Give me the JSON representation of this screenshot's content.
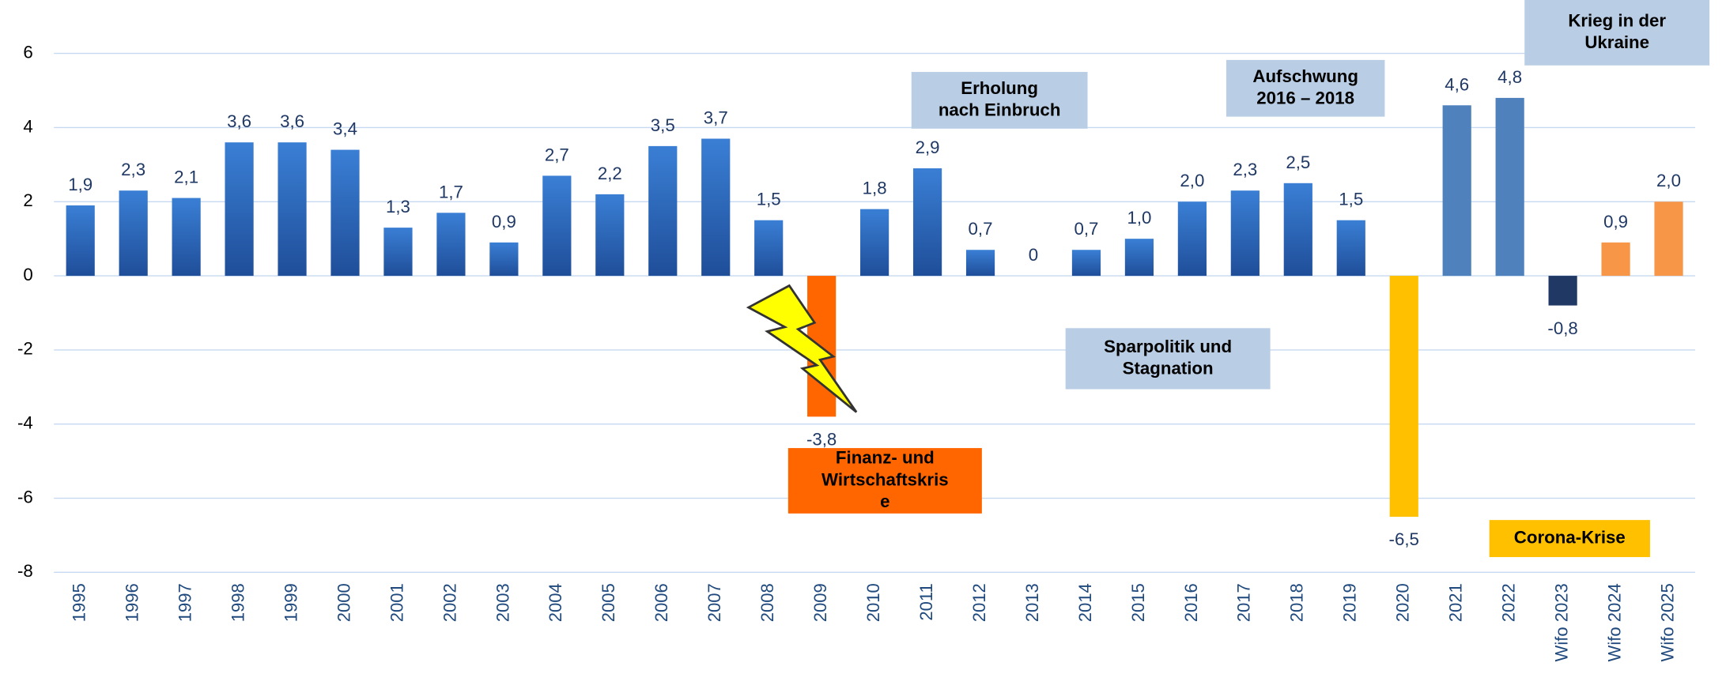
{
  "chart_data": {
    "type": "bar",
    "categories": [
      "1995",
      "1996",
      "1997",
      "1998",
      "1999",
      "2000",
      "2001",
      "2002",
      "2003",
      "2004",
      "2005",
      "2006",
      "2007",
      "2008",
      "2009",
      "2010",
      "2011",
      "2012",
      "2013",
      "2014",
      "2015",
      "2016",
      "2017",
      "2018",
      "2019",
      "2020",
      "2021",
      "2022",
      "Wifo 2023",
      "Wifo 2024",
      "Wifo 2025"
    ],
    "values": [
      1.9,
      2.3,
      2.1,
      3.6,
      3.6,
      3.4,
      1.3,
      1.7,
      0.9,
      2.7,
      2.2,
      3.5,
      3.7,
      1.5,
      -3.8,
      1.8,
      2.9,
      0.7,
      0,
      0.7,
      1.0,
      2.0,
      2.3,
      2.5,
      1.5,
      -6.5,
      4.6,
      4.8,
      -0.8,
      0.9,
      2.0
    ],
    "value_labels": [
      "1,9",
      "2,3",
      "2,1",
      "3,6",
      "3,6",
      "3,4",
      "1,3",
      "1,7",
      "0,9",
      "2,7",
      "2,2",
      "3,5",
      "3,7",
      "1,5",
      "-3,8",
      "1,8",
      "2,9",
      "0,7",
      "0",
      "0,7",
      "1,0",
      "2,0",
      "2,3",
      "2,5",
      "1,5",
      "-6,5",
      "4,6",
      "4,8",
      "-0,8",
      "0,9",
      "2,0"
    ],
    "colors": [
      "#2e6cc0",
      "#2e6cc0",
      "#2e6cc0",
      "#2e6cc0",
      "#2e6cc0",
      "#2e6cc0",
      "#2e6cc0",
      "#2e6cc0",
      "#2e6cc0",
      "#2e6cc0",
      "#2e6cc0",
      "#2e6cc0",
      "#2e6cc0",
      "#2e6cc0",
      "#ff6600",
      "#2e6cc0",
      "#2e6cc0",
      "#2e6cc0",
      "#2e6cc0",
      "#2e6cc0",
      "#2e6cc0",
      "#2e6cc0",
      "#2e6cc0",
      "#2e6cc0",
      "#2e6cc0",
      "#ffc000",
      "#4f81bd",
      "#4f81bd",
      "#1f3864",
      "#f79646",
      "#f79646"
    ],
    "ylim": [
      -8,
      7
    ],
    "yticks": [
      -8,
      -6,
      -4,
      -2,
      0,
      2,
      4,
      6
    ],
    "grid": true,
    "annotations": [
      {
        "lines": [
          "Erholung",
          "nach Einbruch"
        ],
        "color": "#b9cde5"
      },
      {
        "lines": [
          "Aufschwung",
          "2016 – 2018"
        ],
        "color": "#b9cde5"
      },
      {
        "lines": [
          "Krieg in der",
          "Ukraine"
        ],
        "color": "#b9cde5"
      },
      {
        "lines": [
          "Sparpolitik und",
          "Stagnation"
        ],
        "color": "#b9cde5"
      },
      {
        "lines": [
          "Finanz- und",
          "Wirtschaftskris",
          "e"
        ],
        "color": "#ff6600"
      },
      {
        "lines": [
          "Corona-Krise"
        ],
        "color": "#ffc000"
      }
    ]
  }
}
